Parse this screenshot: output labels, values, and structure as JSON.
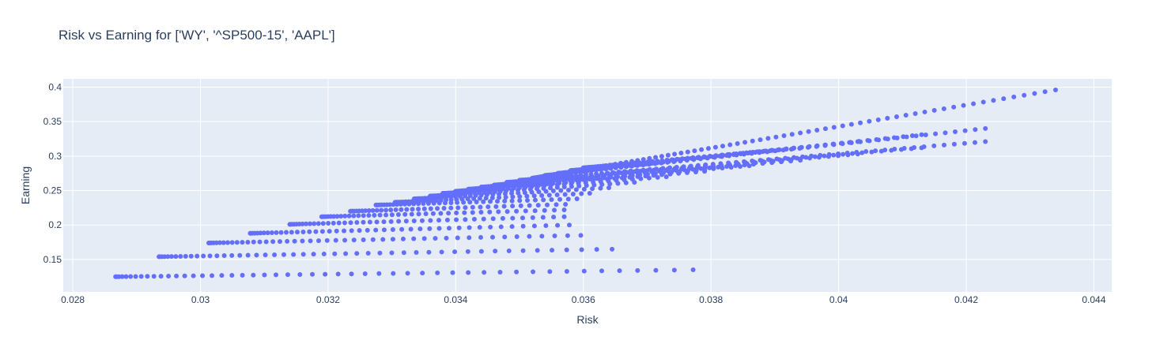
{
  "chart_data": {
    "type": "scatter",
    "title": "Risk vs Earning for ['WY', '^SP500-15', 'AAPL']",
    "xlabel": "Risk",
    "ylabel": "Earning",
    "xlim": [
      0.02785,
      0.04428
    ],
    "ylim": [
      0.103,
      0.412
    ],
    "xticks": [
      0.028,
      0.03,
      0.032,
      0.034,
      0.036,
      0.038,
      0.04,
      0.042,
      0.044
    ],
    "yticks": [
      0.15,
      0.2,
      0.25,
      0.3,
      0.35,
      0.4
    ],
    "grid": true,
    "colors": {
      "marker": "#636efa",
      "plot_bg": "#e5ecf6",
      "grid": "#ffffff",
      "text": "#2a3f5f"
    },
    "marker_size": 6,
    "series": [
      {
        "name": "",
        "x_range": [
          0.02867,
          0.03772
        ],
        "y_range": [
          0.125,
          0.135
        ],
        "points": 50
      },
      {
        "name": "",
        "x_range": [
          0.02935,
          0.03645
        ],
        "y_range": [
          0.154,
          0.165
        ],
        "points": 48
      },
      {
        "name": "",
        "x_range": [
          0.03013,
          0.03596
        ],
        "y_range": [
          0.174,
          0.185
        ],
        "points": 46
      },
      {
        "name": "",
        "x_range": [
          0.03078,
          0.03578
        ],
        "y_range": [
          0.188,
          0.2
        ],
        "points": 44
      },
      {
        "name": "",
        "x_range": [
          0.0314,
          0.0357
        ],
        "y_range": [
          0.201,
          0.212
        ],
        "points": 42
      },
      {
        "name": "",
        "x_range": [
          0.0319,
          0.0357
        ],
        "y_range": [
          0.212,
          0.222
        ],
        "points": 40
      },
      {
        "name": "",
        "x_range": [
          0.03235,
          0.03572
        ],
        "y_range": [
          0.22,
          0.23
        ],
        "points": 38
      },
      {
        "name": "",
        "x_range": [
          0.03275,
          0.0359
        ],
        "y_range": [
          0.229,
          0.238
        ],
        "points": 38
      },
      {
        "name": "",
        "x_range": [
          0.03305,
          0.0361
        ],
        "y_range": [
          0.233,
          0.246
        ],
        "points": 38
      },
      {
        "name": "",
        "x_range": [
          0.03335,
          0.0364
        ],
        "y_range": [
          0.238,
          0.254
        ],
        "points": 38
      },
      {
        "name": "",
        "x_range": [
          0.0336,
          0.0368
        ],
        "y_range": [
          0.242,
          0.262
        ],
        "points": 40
      },
      {
        "name": "",
        "x_range": [
          0.0338,
          0.0373
        ],
        "y_range": [
          0.246,
          0.27
        ],
        "points": 42
      },
      {
        "name": "",
        "x_range": [
          0.034,
          0.0379
        ],
        "y_range": [
          0.249,
          0.278
        ],
        "points": 46
      },
      {
        "name": "",
        "x_range": [
          0.0342,
          0.0386
        ],
        "y_range": [
          0.252,
          0.286
        ],
        "points": 50
      },
      {
        "name": "",
        "x_range": [
          0.0344,
          0.0394
        ],
        "y_range": [
          0.255,
          0.294
        ],
        "points": 54
      },
      {
        "name": "",
        "x_range": [
          0.0346,
          0.0403
        ],
        "y_range": [
          0.258,
          0.303
        ],
        "points": 60
      },
      {
        "name": "",
        "x_range": [
          0.0348,
          0.0413
        ],
        "y_range": [
          0.262,
          0.312
        ],
        "points": 66
      },
      {
        "name": "",
        "x_range": [
          0.035,
          0.0423
        ],
        "y_range": [
          0.265,
          0.321
        ],
        "points": 72
      },
      {
        "name": "",
        "x_range": [
          0.0352,
          0.0434
        ],
        "y_range": [
          0.268,
          0.396
        ],
        "points": 80
      },
      {
        "name": "",
        "x_range": [
          0.0354,
          0.0423
        ],
        "y_range": [
          0.272,
          0.34
        ],
        "points": 70
      },
      {
        "name": "",
        "x_range": [
          0.0356,
          0.0413
        ],
        "y_range": [
          0.275,
          0.331
        ],
        "points": 64
      },
      {
        "name": "",
        "x_range": [
          0.0358,
          0.0403
        ],
        "y_range": [
          0.279,
          0.321
        ],
        "points": 56
      },
      {
        "name": "",
        "x_range": [
          0.036,
          0.0394
        ],
        "y_range": [
          0.283,
          0.312
        ],
        "points": 50
      }
    ]
  }
}
